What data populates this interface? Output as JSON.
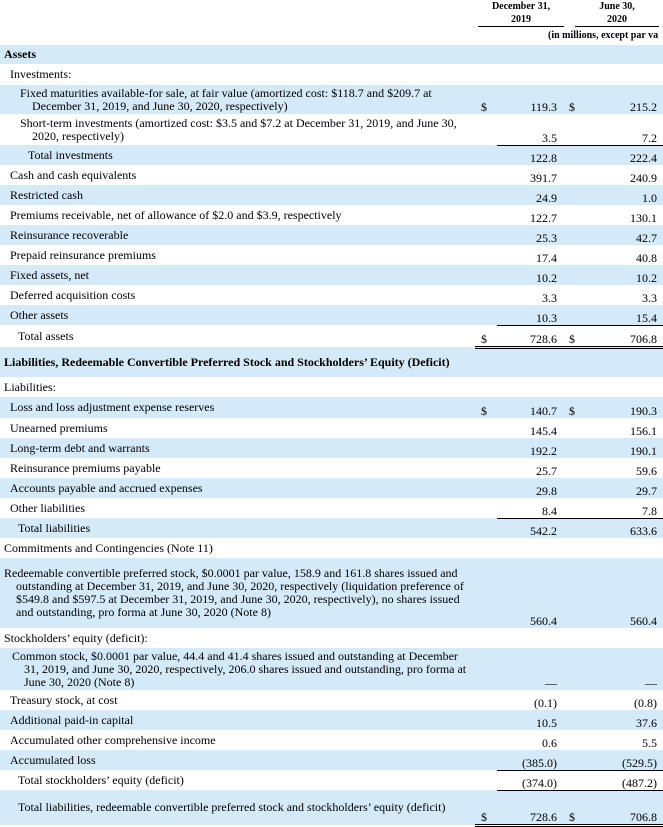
{
  "header": {
    "columns": [
      {
        "label": "December 31,",
        "year": "2019"
      },
      {
        "label": "June 30,",
        "year": "2020"
      }
    ],
    "units": "(in millions, except par va"
  },
  "rows": [
    {
      "label": "Assets",
      "cells": []
    },
    {
      "label": "Investments:",
      "cells": []
    },
    {
      "label": "Fixed maturities available-for sale, at fair value (amortized cost: $118.7 and $209.7 at December 31, 2019, and June 30, 2020, respectively)",
      "cells": [
        {
          "sign": "$",
          "value": "119.3"
        },
        {
          "sign": "$",
          "value": "215.2"
        }
      ]
    },
    {
      "label": "Short-term investments (amortized cost: $3.5 and $7.2 at December 31, 2019, and June 30, 2020, respectively)",
      "cells": [
        {
          "value": "3.5"
        },
        {
          "value": "7.2"
        }
      ]
    },
    {
      "label": "Total investments",
      "cells": [
        {
          "value": "122.8"
        },
        {
          "value": "222.4"
        }
      ]
    },
    {
      "label": "Cash and cash equivalents",
      "cells": [
        {
          "value": "391.7"
        },
        {
          "value": "240.9"
        }
      ]
    },
    {
      "label": "Restricted cash",
      "cells": [
        {
          "value": "24.9"
        },
        {
          "value": "1.0"
        }
      ]
    },
    {
      "label": "Premiums receivable, net of allowance of $2.0 and $3.9, respectively",
      "cells": [
        {
          "value": "122.7"
        },
        {
          "value": "130.1"
        }
      ]
    },
    {
      "label": "Reinsurance recoverable",
      "cells": [
        {
          "value": "25.3"
        },
        {
          "value": "42.7"
        }
      ]
    },
    {
      "label": "Prepaid reinsurance premiums",
      "cells": [
        {
          "value": "17.4"
        },
        {
          "value": "40.8"
        }
      ]
    },
    {
      "label": "Fixed assets, net",
      "cells": [
        {
          "value": "10.2"
        },
        {
          "value": "10.2"
        }
      ]
    },
    {
      "label": "Deferred acquisition costs",
      "cells": [
        {
          "value": "3.3"
        },
        {
          "value": "3.3"
        }
      ]
    },
    {
      "label": "Other assets",
      "cells": [
        {
          "value": "10.3"
        },
        {
          "value": "15.4"
        }
      ]
    },
    {
      "label": "Total assets",
      "cells": [
        {
          "sign": "$",
          "value": "728.6"
        },
        {
          "sign": "$",
          "value": "706.8"
        }
      ]
    },
    {
      "label": "Liabilities, Redeemable Convertible Preferred Stock and Stockholders’ Equity (Deficit)",
      "cells": []
    },
    {
      "label": "Liabilities:",
      "cells": []
    },
    {
      "label": "Loss and loss adjustment expense reserves",
      "cells": [
        {
          "sign": "$",
          "value": "140.7"
        },
        {
          "sign": "$",
          "value": "190.3"
        }
      ]
    },
    {
      "label": "Unearned premiums",
      "cells": [
        {
          "value": "145.4"
        },
        {
          "value": "156.1"
        }
      ]
    },
    {
      "label": "Long-term debt and warrants",
      "cells": [
        {
          "value": "192.2"
        },
        {
          "value": "190.1"
        }
      ]
    },
    {
      "label": "Reinsurance premiums payable",
      "cells": [
        {
          "value": "25.7"
        },
        {
          "value": "59.6"
        }
      ]
    },
    {
      "label": "Accounts payable and accrued expenses",
      "cells": [
        {
          "value": "29.8"
        },
        {
          "value": "29.7"
        }
      ]
    },
    {
      "label": "Other liabilities",
      "cells": [
        {
          "value": "8.4"
        },
        {
          "value": "7.8"
        }
      ]
    },
    {
      "label": "Total liabilities",
      "cells": [
        {
          "value": "542.2"
        },
        {
          "value": "633.6"
        }
      ]
    },
    {
      "label": "Commitments and Contingencies (Note 11)",
      "cells": []
    },
    {
      "label": "Redeemable convertible preferred stock, $0.0001 par value, 158.9 and 161.8 shares issued and outstanding at December 31, 2019, and June 30, 2020, respectively (liquidation preference of $549.8 and $597.5 at December 31, 2019, and June 30, 2020, respectively), no shares issued and outstanding, pro forma at June 30, 2020 (Note 8)",
      "cells": [
        {
          "value": "560.4"
        },
        {
          "value": "560.4"
        }
      ]
    },
    {
      "label": "Stockholders’ equity (deficit):",
      "cells": []
    },
    {
      "label": "Common stock, $0.0001 par value, 44.4 and 41.4 shares issued and outstanding at December 31, 2019, and June 30, 2020, respectively, 206.0 shares issued and outstanding, pro forma at June 30, 2020 (Note 8)",
      "cells": [
        {
          "value": "—"
        },
        {
          "value": "—"
        }
      ]
    },
    {
      "label": "Treasury stock, at cost",
      "cells": [
        {
          "value": "(0.1)"
        },
        {
          "value": "(0.8)"
        }
      ]
    },
    {
      "label": "Additional paid-in capital",
      "cells": [
        {
          "value": "10.5"
        },
        {
          "value": "37.6"
        }
      ]
    },
    {
      "label": "Accumulated other comprehensive income",
      "cells": [
        {
          "value": "0.6"
        },
        {
          "value": "5.5"
        }
      ]
    },
    {
      "label": "Accumulated loss",
      "cells": [
        {
          "value": "(385.0)"
        },
        {
          "value": "(529.5)"
        }
      ]
    },
    {
      "label": "Total stockholders’ equity (deficit)",
      "cells": [
        {
          "value": "(374.0)"
        },
        {
          "value": "(487.2)"
        }
      ]
    },
    {
      "label": "Total liabilities, redeemable convertible preferred stock and stockholders’ equity (deficit)",
      "cells": [
        {
          "sign": "$",
          "value": "728.6"
        },
        {
          "sign": "$",
          "value": "706.8"
        }
      ]
    }
  ]
}
